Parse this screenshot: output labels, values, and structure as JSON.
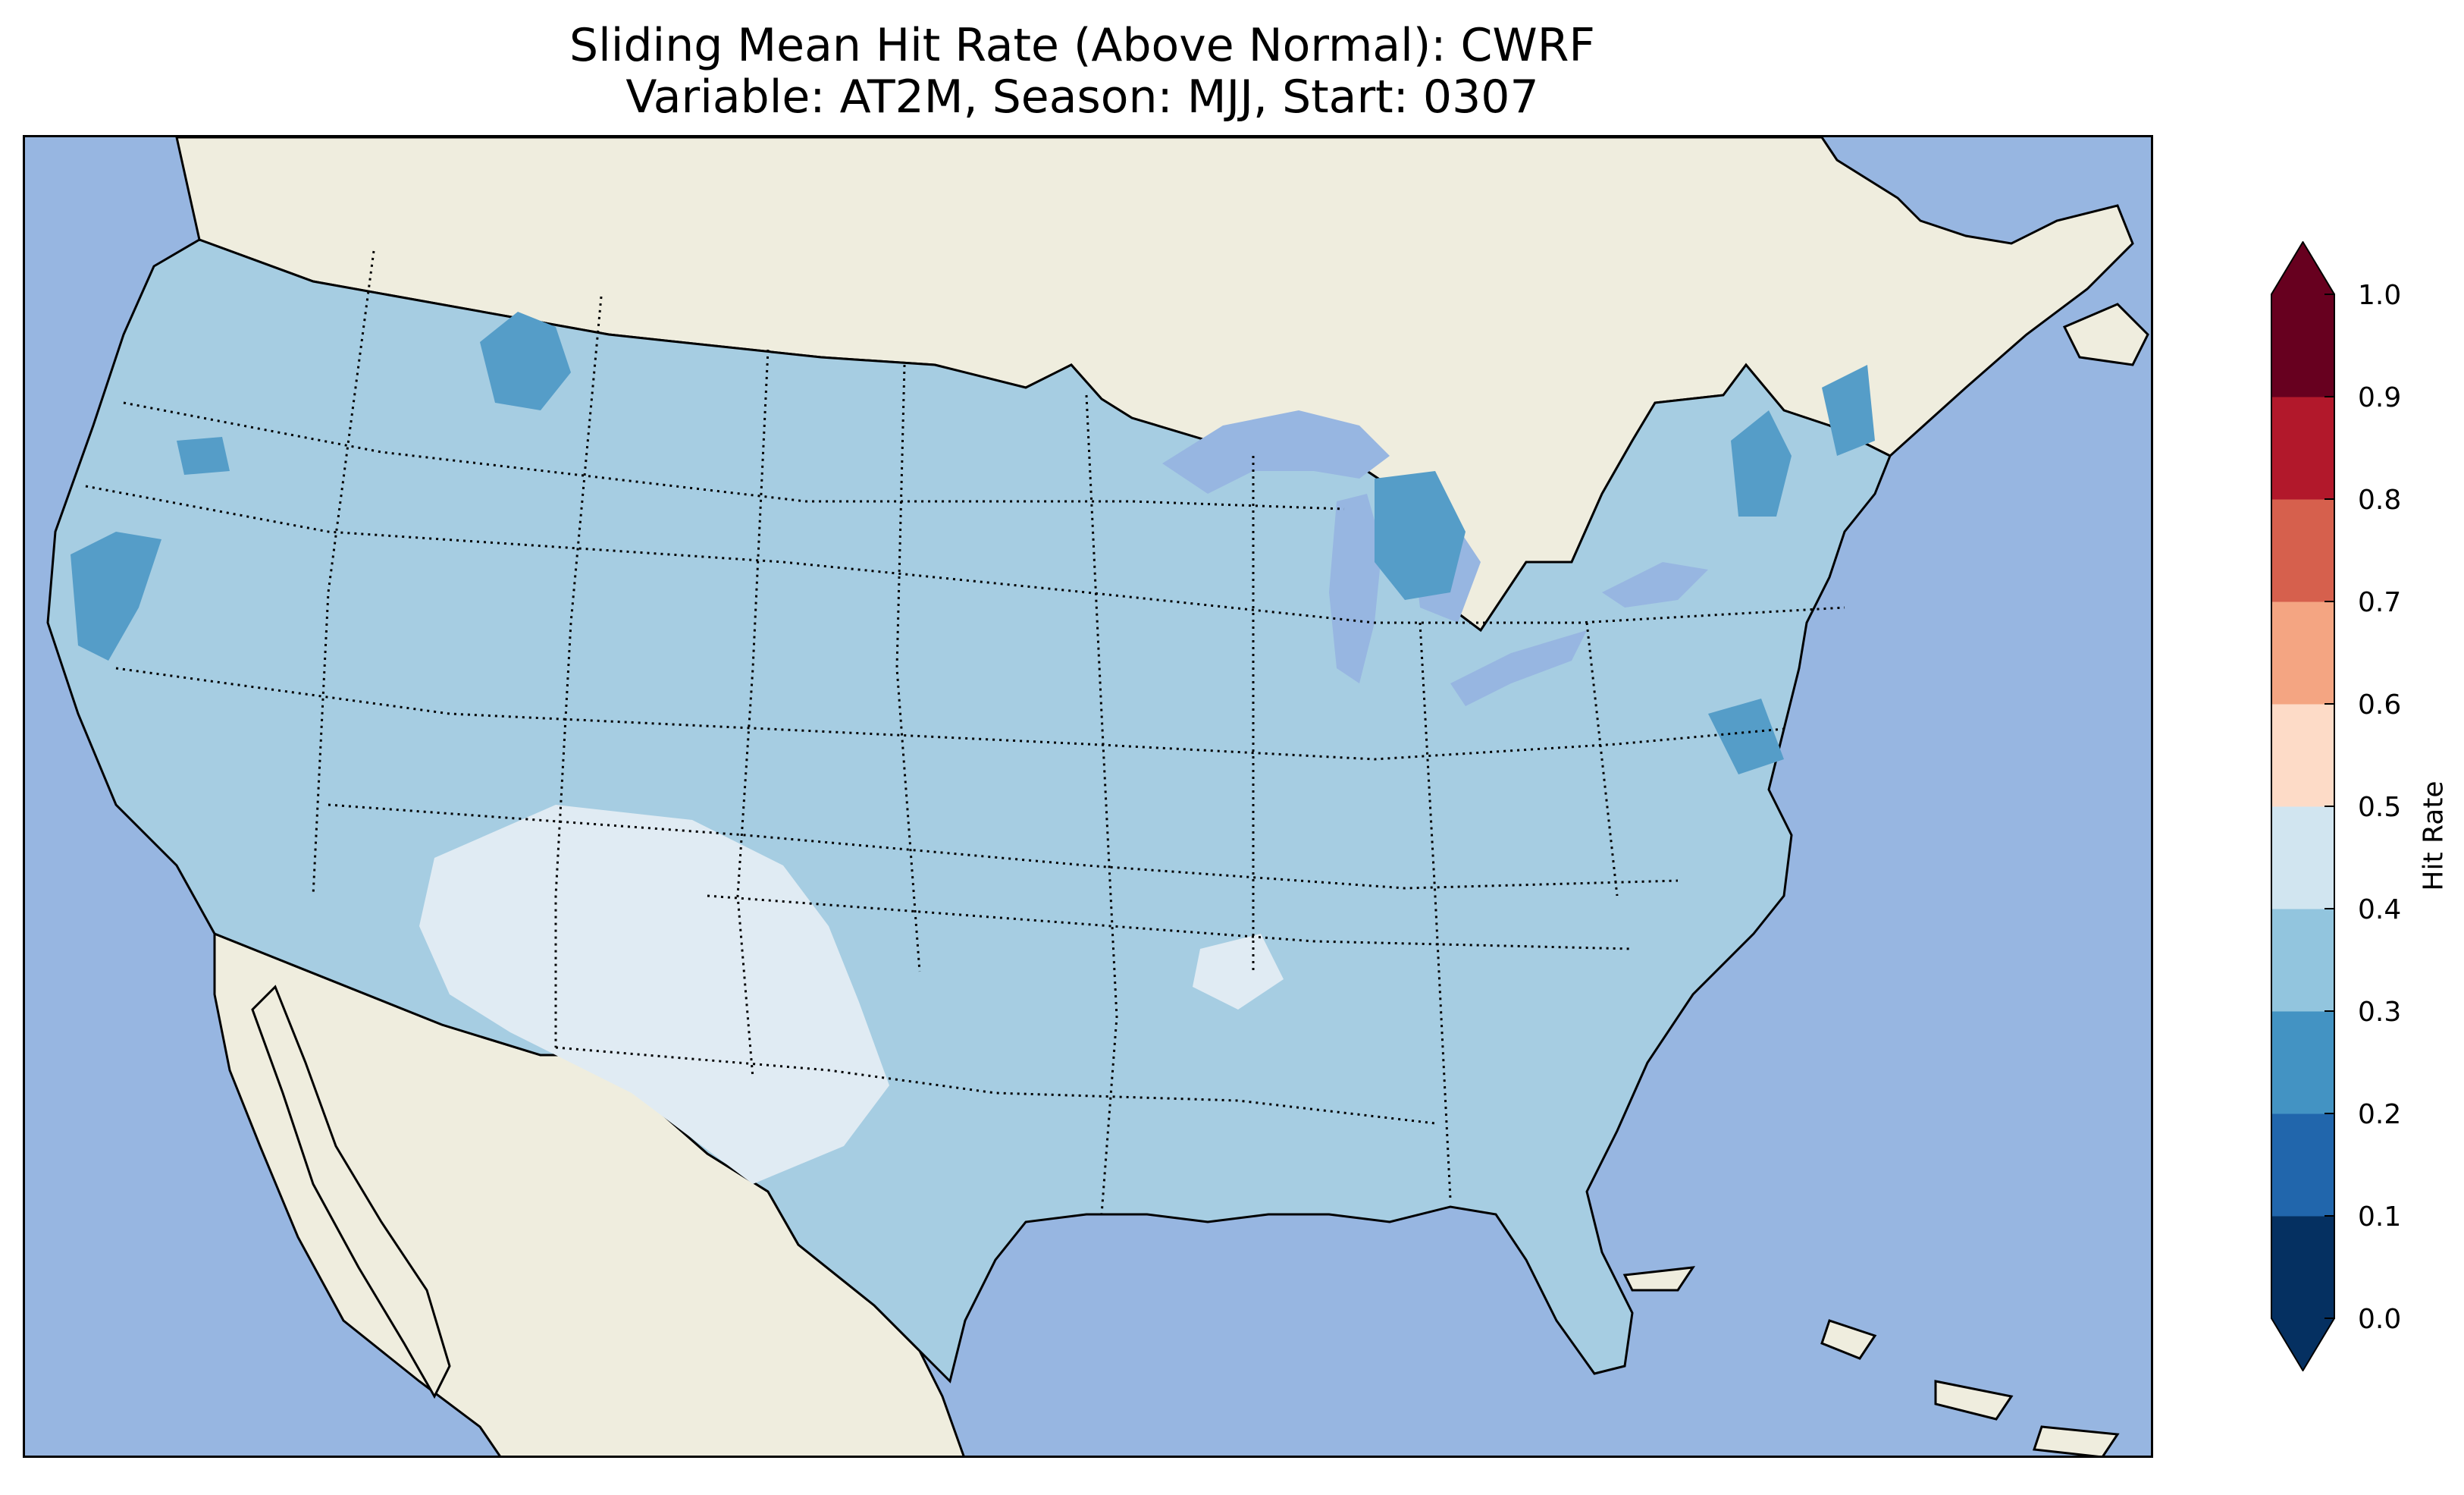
{
  "title": {
    "line1": "Sliding Mean Hit Rate (Above Normal): CWRF",
    "line2": "Variable: AT2M, Season: MJJ, Start: 0307"
  },
  "colors": {
    "ocean": "#97b6e1",
    "land": "#efedde",
    "region_bin_0_3_0_4": "#a6cde2",
    "region_bin_0_2_0_3": "#559dc8",
    "region_bin_0_4_0_5": "#e0ebf3"
  },
  "colorbar": {
    "label": "Hit Rate",
    "ticks": [
      "0.0",
      "0.1",
      "0.2",
      "0.3",
      "0.4",
      "0.5",
      "0.6",
      "0.7",
      "0.8",
      "0.9",
      "1.0"
    ],
    "colors": [
      "#053061",
      "#2166ac",
      "#4393c3",
      "#92c5de",
      "#d1e5f0",
      "#fddbc7",
      "#f4a582",
      "#d6604d",
      "#b2182b",
      "#67001f"
    ],
    "extend": "both"
  }
}
